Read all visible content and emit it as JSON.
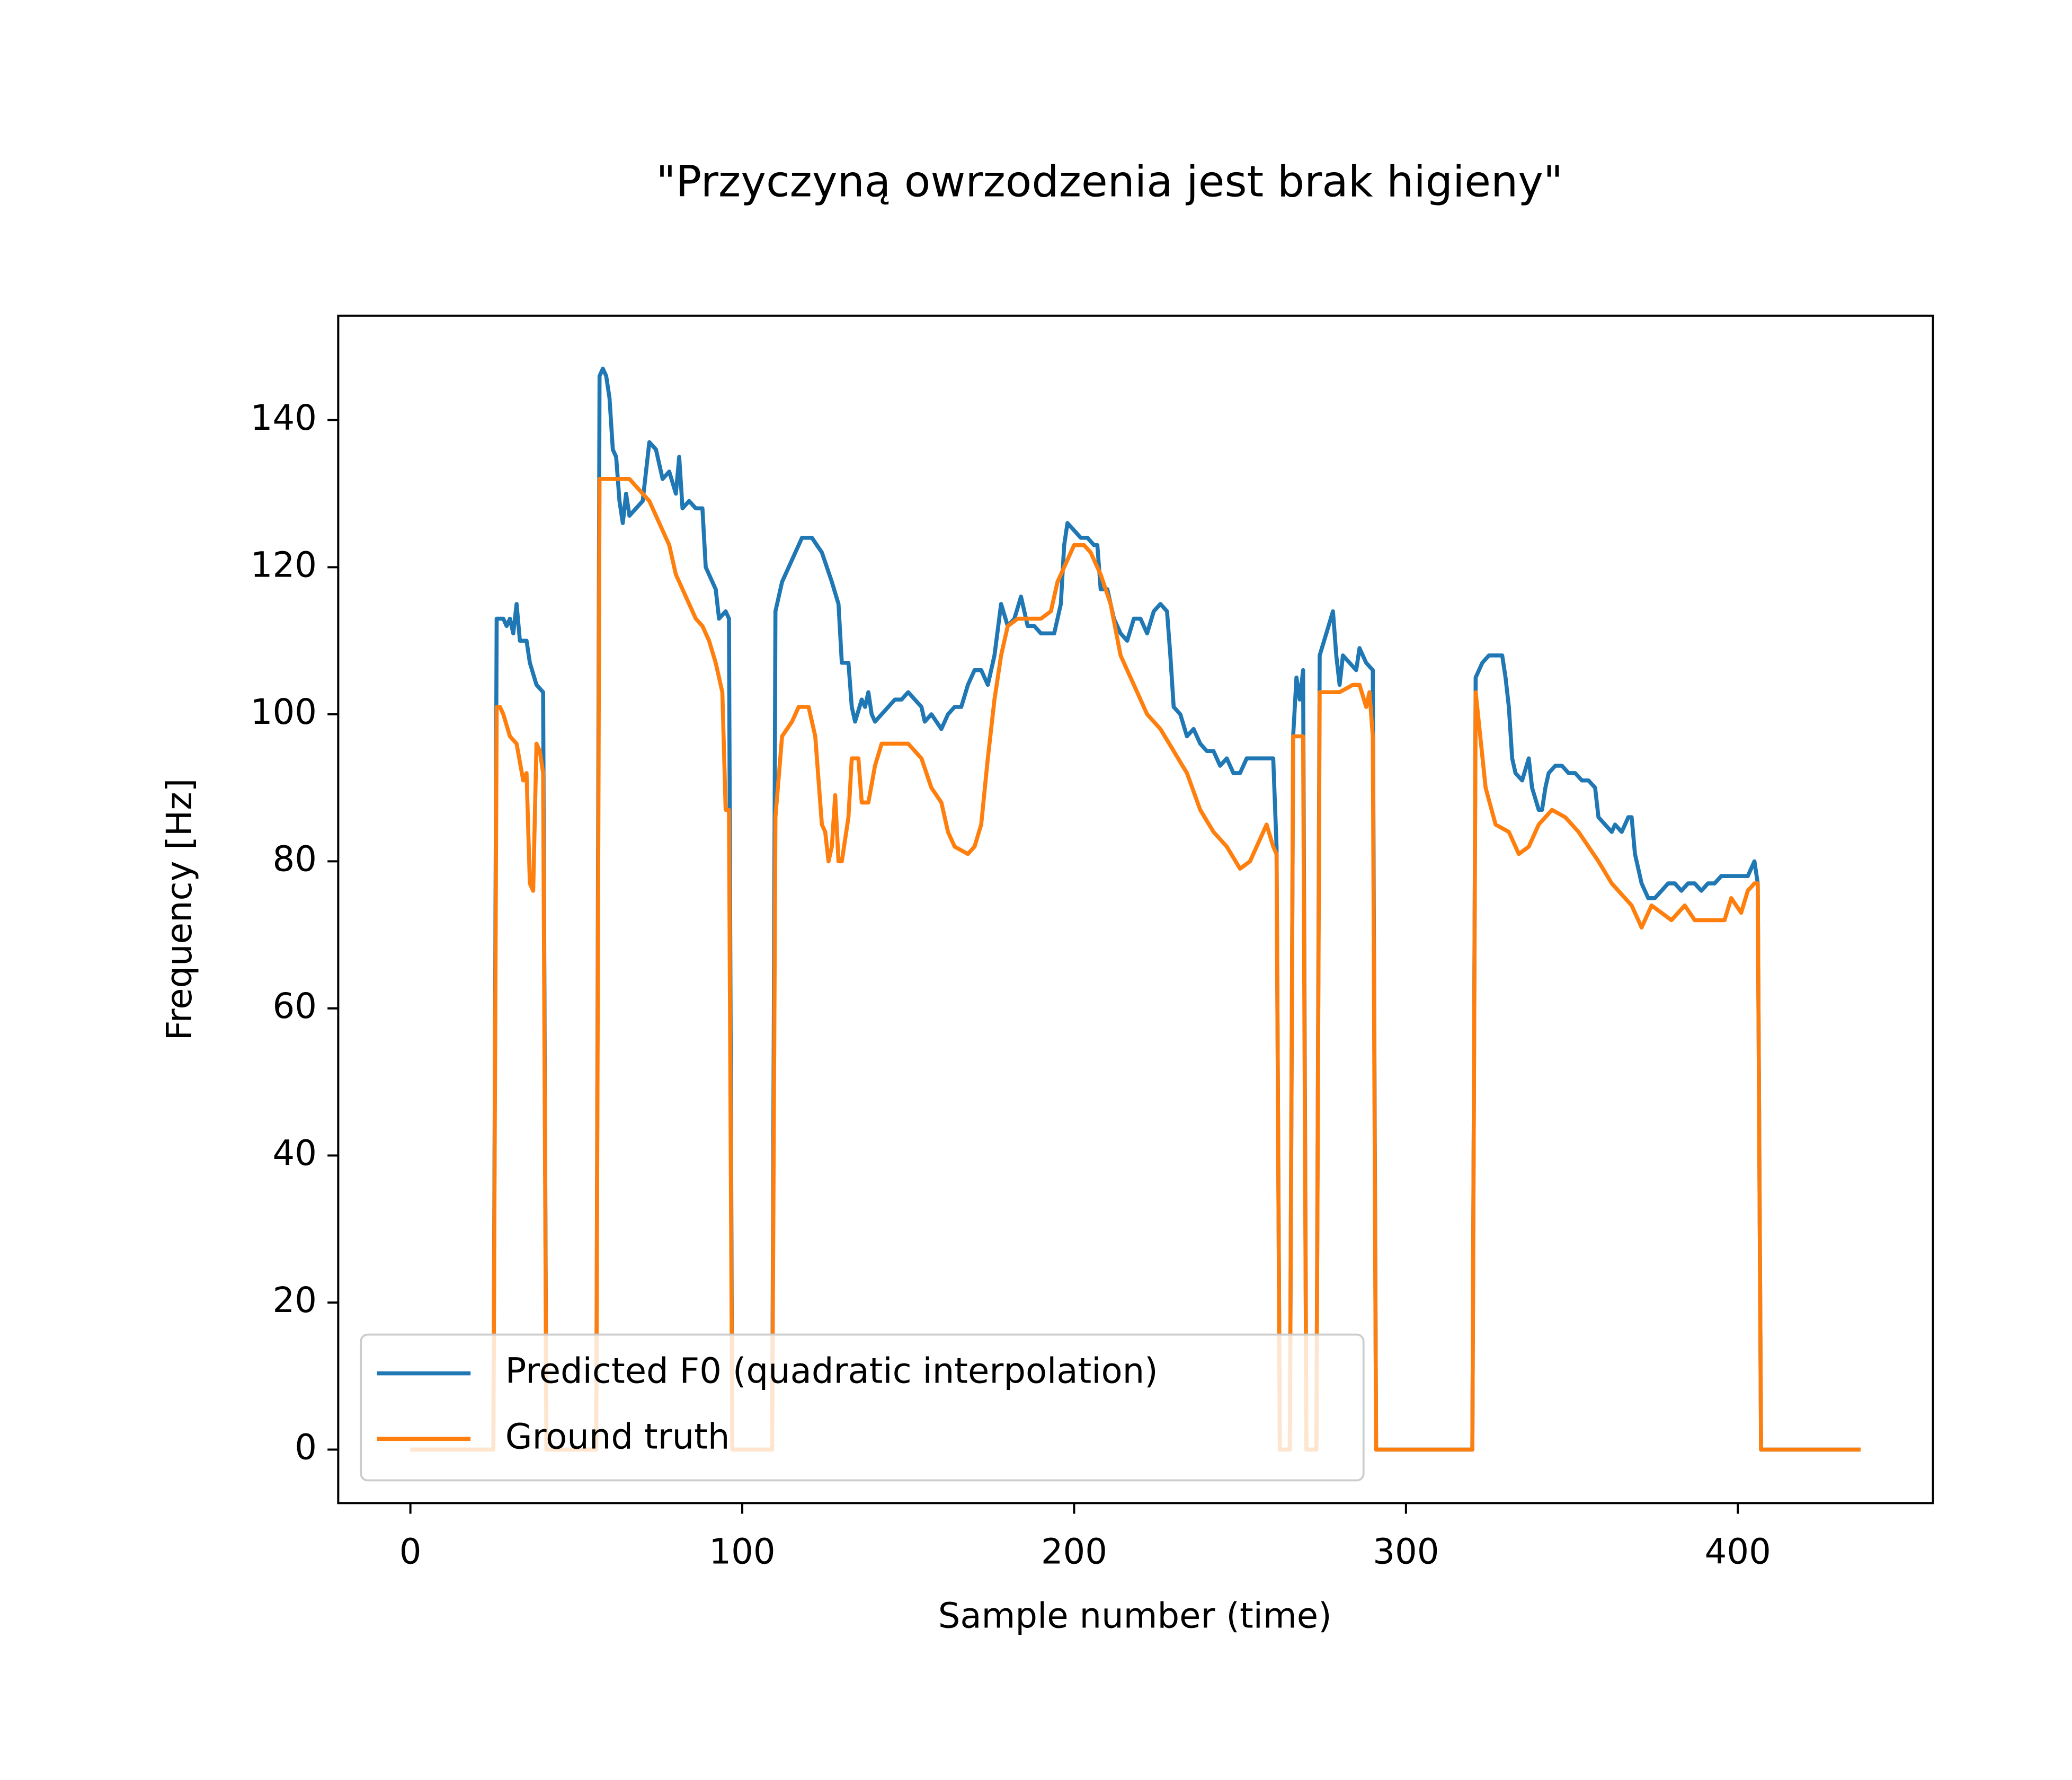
{
  "chart_data": {
    "type": "line",
    "title": "\"Przyczyną owrzodzenia jest brak higieny\"",
    "x_label": "Sample number (time)",
    "y_label": "Frequency [Hz]",
    "xlim": [
      -21.75,
      458.8
    ],
    "ylim": [
      -7.27,
      154.2
    ],
    "xticks": [
      0,
      100,
      200,
      300,
      400
    ],
    "yticks": [
      0,
      20,
      40,
      60,
      80,
      100,
      120,
      140
    ],
    "grid": false,
    "legend": "lower left",
    "series": [
      {
        "name": "Predicted F0 (quadratic interpolation)",
        "color": "#1f77b4",
        "x": [
          0,
          25,
          26,
          28,
          29,
          30,
          31,
          32,
          33,
          35,
          36,
          38,
          40,
          41,
          56,
          57,
          58,
          59,
          60,
          61,
          62,
          63,
          64,
          65,
          66,
          68,
          70,
          72,
          74,
          76,
          78,
          80,
          81,
          82,
          84,
          86,
          88,
          89,
          90,
          92,
          93,
          95,
          96,
          97,
          109,
          110,
          112,
          115,
          118,
          121,
          124,
          127,
          129,
          130,
          132,
          133,
          134,
          136,
          137,
          138,
          139,
          140,
          142,
          144,
          146,
          148,
          150,
          152,
          154,
          155,
          157,
          160,
          162,
          164,
          166,
          168,
          170,
          172,
          174,
          176,
          178,
          180,
          182,
          184,
          186,
          188,
          190,
          192,
          194,
          196,
          197,
          198,
          200,
          202,
          204,
          206,
          207,
          208,
          210,
          212,
          214,
          216,
          218,
          220,
          222,
          224,
          226,
          228,
          229,
          230,
          232,
          234,
          236,
          238,
          240,
          242,
          244,
          246,
          248,
          250,
          252,
          256,
          260,
          261,
          262,
          265,
          266,
          267,
          268,
          269,
          270,
          273,
          274,
          276,
          278,
          279,
          280,
          281,
          283,
          285,
          286,
          288,
          290,
          291,
          320,
          321,
          323,
          325,
          327,
          329,
          330,
          331,
          332,
          333,
          335,
          337,
          338,
          340,
          341,
          342,
          343,
          345,
          347,
          349,
          351,
          353,
          355,
          357,
          358,
          360,
          362,
          363,
          365,
          366,
          367,
          368,
          369,
          371,
          373,
          375,
          377,
          379,
          381,
          383,
          385,
          387,
          389,
          391,
          393,
          395,
          397,
          399,
          401,
          403,
          405,
          406,
          407,
          437
        ],
        "values": [
          0,
          0,
          113,
          113,
          112,
          113,
          111,
          115,
          110,
          110,
          107,
          104,
          103,
          0,
          0,
          146,
          147,
          146,
          143,
          136,
          135,
          129,
          126,
          130,
          127,
          128,
          129,
          137,
          136,
          132,
          133,
          130,
          135,
          128,
          129,
          128,
          128,
          120,
          119,
          117,
          113,
          114,
          113,
          0,
          0,
          114,
          118,
          121,
          124,
          124,
          122,
          118,
          115,
          107,
          107,
          101,
          99,
          102,
          101,
          103,
          100,
          99,
          100,
          101,
          102,
          102,
          103,
          102,
          101,
          99,
          100,
          98,
          100,
          101,
          101,
          104,
          106,
          106,
          104,
          108,
          115,
          112,
          113,
          116,
          112,
          112,
          111,
          111,
          111,
          115,
          123,
          126,
          125,
          124,
          124,
          123,
          123,
          117,
          117,
          113,
          111,
          110,
          113,
          113,
          111,
          114,
          115,
          114,
          108,
          101,
          100,
          97,
          98,
          96,
          95,
          95,
          93,
          94,
          92,
          92,
          94,
          94,
          94,
          82,
          0,
          0,
          97,
          105,
          102,
          106,
          0,
          0,
          108,
          111,
          114,
          108,
          104,
          108,
          107,
          106,
          109,
          107,
          106,
          0,
          0,
          105,
          107,
          108,
          108,
          108,
          105,
          101,
          94,
          92,
          91,
          94,
          90,
          87,
          87,
          90,
          92,
          93,
          93,
          92,
          92,
          91,
          91,
          90,
          86,
          85,
          84,
          85,
          84,
          85,
          86,
          86,
          81,
          77,
          75,
          75,
          76,
          77,
          77,
          76,
          77,
          77,
          76,
          77,
          77,
          78,
          78,
          78,
          78,
          78,
          80,
          77,
          0,
          0
        ]
      },
      {
        "name": "Ground truth",
        "color": "#ff7f0e",
        "x": [
          0,
          25,
          26,
          27,
          28,
          30,
          32,
          34,
          35,
          36,
          37,
          38,
          39,
          40,
          41,
          56,
          57,
          60,
          64,
          66,
          68,
          70,
          72,
          74,
          76,
          78,
          80,
          82,
          84,
          86,
          88,
          90,
          92,
          94,
          95,
          96,
          97,
          109,
          110,
          112,
          115,
          117,
          120,
          122,
          124,
          125,
          126,
          127,
          128,
          129,
          130,
          132,
          133,
          135,
          136,
          138,
          140,
          142,
          146,
          150,
          154,
          157,
          160,
          162,
          164,
          168,
          170,
          172,
          174,
          176,
          178,
          180,
          183,
          186,
          190,
          193,
          195,
          198,
          200,
          203,
          205,
          208,
          211,
          214,
          218,
          222,
          226,
          230,
          234,
          238,
          242,
          246,
          250,
          253,
          256,
          258,
          260,
          261,
          262,
          265,
          266,
          269,
          270,
          273,
          274,
          280,
          284,
          286,
          288,
          289,
          290,
          291,
          320,
          321,
          324,
          327,
          331,
          334,
          337,
          340,
          344,
          348,
          352,
          358,
          362,
          368,
          371,
          374,
          380,
          384,
          387,
          392,
          396,
          398,
          401,
          403,
          405,
          406,
          407,
          437
        ],
        "values": [
          0,
          0,
          101,
          101,
          100,
          97,
          96,
          91,
          92,
          77,
          76,
          96,
          95,
          92,
          0,
          0,
          132,
          132,
          132,
          132,
          131,
          130,
          129,
          127,
          125,
          123,
          119,
          117,
          115,
          113,
          112,
          110,
          107,
          103,
          87,
          87,
          0,
          0,
          86,
          97,
          99,
          101,
          101,
          97,
          85,
          84,
          80,
          82,
          89,
          80,
          80,
          86,
          94,
          94,
          88,
          88,
          93,
          96,
          96,
          96,
          94,
          90,
          88,
          84,
          82,
          81,
          82,
          85,
          94,
          102,
          108,
          112,
          113,
          113,
          113,
          114,
          118,
          121,
          123,
          123,
          122,
          119,
          115,
          108,
          104,
          100,
          98,
          95,
          92,
          87,
          84,
          82,
          79,
          80,
          83,
          85,
          82,
          81,
          0,
          0,
          97,
          97,
          0,
          0,
          103,
          103,
          104,
          104,
          101,
          103,
          97,
          0,
          0,
          103,
          90,
          85,
          84,
          81,
          82,
          85,
          87,
          86,
          84,
          80,
          77,
          74,
          71,
          74,
          72,
          74,
          72,
          72,
          72,
          75,
          73,
          76,
          77,
          77,
          0,
          0
        ]
      }
    ]
  }
}
